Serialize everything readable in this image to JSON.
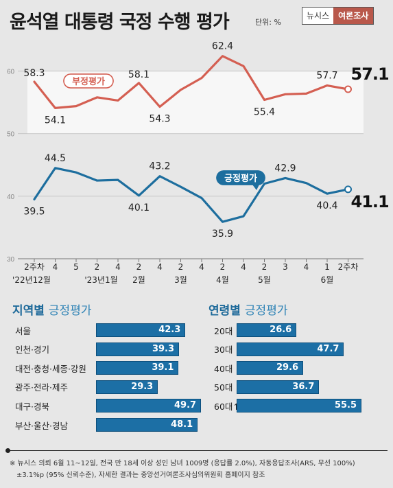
{
  "header": {
    "title": "윤석열 대통령 국정 수행 평가",
    "unit": "단위: %",
    "brand_left": "뉴시스",
    "brand_right": "여론조사"
  },
  "chart_data": [
    {
      "type": "line",
      "x": [
        "2주차",
        "4",
        "5",
        "2",
        "4",
        "2",
        "4",
        "2",
        "4",
        "2",
        "4",
        "2",
        "3",
        "4",
        "1",
        "2주차"
      ],
      "x_group_labels": [
        "'22년12월",
        "'23년1월",
        "2월",
        "3월",
        "4월",
        "5월",
        "6월"
      ],
      "ylim": [
        30,
        65
      ],
      "yticks": [
        30,
        40,
        50,
        60
      ],
      "grid": true,
      "series": [
        {
          "name": "부정평가",
          "color": "#d45f52",
          "values": [
            58.3,
            54.1,
            54.4,
            55.8,
            55.3,
            58.1,
            54.3,
            57.0,
            58.9,
            62.4,
            60.8,
            55.4,
            56.3,
            56.4,
            57.7,
            57.1
          ],
          "labels": {
            "0": "58.3",
            "1": "54.1",
            "5": "58.1",
            "6": "54.3",
            "9": "62.4",
            "11": "55.4",
            "14": "57.7",
            "15": "57.1"
          }
        },
        {
          "name": "긍정평가",
          "color": "#1d6e9e",
          "values": [
            39.5,
            44.5,
            43.8,
            42.5,
            42.6,
            40.1,
            43.2,
            41.5,
            39.7,
            35.9,
            36.8,
            42.0,
            42.9,
            42.1,
            40.4,
            41.1
          ],
          "labels": {
            "0": "39.5",
            "1": "44.5",
            "5": "40.1",
            "6": "43.2",
            "9": "35.9",
            "12": "42.9",
            "14": "40.4",
            "15": "41.1"
          }
        }
      ]
    },
    {
      "type": "bar",
      "title": "지역별",
      "subtitle": "긍정평가",
      "categories": [
        "서울",
        "인천·경기",
        "대전·충청·세종·강원",
        "광주·전라·제주",
        "대구·경북",
        "부산·울산·경남"
      ],
      "values": [
        42.3,
        39.3,
        39.1,
        29.3,
        49.7,
        48.1
      ]
    },
    {
      "type": "bar",
      "title": "연령별",
      "subtitle": "긍정평가",
      "categories": [
        "20대",
        "30대",
        "40대",
        "50대",
        "60대↑"
      ],
      "values": [
        26.6,
        47.7,
        29.6,
        36.7,
        55.5
      ]
    }
  ],
  "footnote": {
    "line1": "※ 뉴시스 의뢰 6월 11~12일, 전국 만 18세 이상 성인 남녀 1009명 (응답률 2.0%), 자동응답조사(ARS, 무선 100%)",
    "line2": "±3.1%p (95% 신뢰수준), 자세한 결과는 중앙선거여론조사심의위원회 홈페이지 참조"
  }
}
